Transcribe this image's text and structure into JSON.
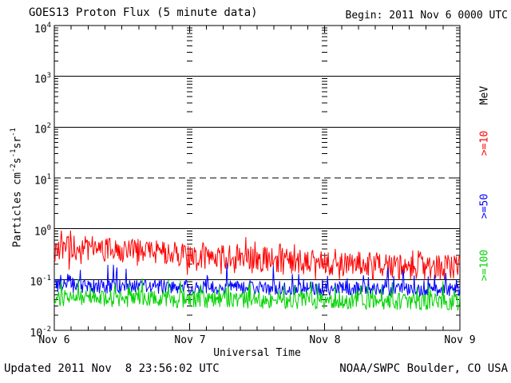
{
  "header": {
    "title": "GOES13 Proton Flux (5 minute data)",
    "begin": "Begin: 2011 Nov 6 0000 UTC"
  },
  "footer": {
    "updated": "Updated 2011 Nov  8 23:56:02 UTC",
    "source": "NOAA/SWPC Boulder, CO USA"
  },
  "axis": {
    "x_title": "Universal Time",
    "unit": "MeV",
    "y_title": {
      "p1": "Particles cm",
      "e1": "-2",
      "p2": "s",
      "e2": "-1",
      "p3": "sr",
      "e3": "-1"
    }
  },
  "colors": {
    "frame": "#000000",
    "series_ge10": "#ff0000",
    "series_ge50": "#0000ff",
    "series_ge100": "#00d300"
  },
  "chart_data": {
    "type": "line",
    "title": "GOES13 Proton Flux (5 minute data)",
    "xlabel": "Universal Time",
    "ylabel": "Particles cm-2 s-1 sr-1",
    "x_ticks": [
      "Nov 6",
      "Nov 7",
      "Nov 8",
      "Nov 9"
    ],
    "xlim_hours": [
      0,
      72
    ],
    "ylim_log": [
      -2,
      4
    ],
    "y_ticks": [
      {
        "base": "10",
        "exp": "4"
      },
      {
        "base": "10",
        "exp": "3"
      },
      {
        "base": "10",
        "exp": "2"
      },
      {
        "base": "10",
        "exp": "1"
      },
      {
        "base": "10",
        "exp": "0"
      },
      {
        "base": "10",
        "exp": "-1"
      },
      {
        "base": "10",
        "exp": "-2"
      }
    ],
    "hlines": [
      {
        "log": 3,
        "style": "solid"
      },
      {
        "log": 2,
        "style": "solid"
      },
      {
        "log": 1,
        "style": "dashed"
      },
      {
        "log": 0,
        "style": "solid"
      },
      {
        "log": -1,
        "style": "solid"
      }
    ],
    "day_gridline_hours": [
      24,
      48
    ],
    "minor_xtick_step_hours": 3,
    "major_xtick_hours": [
      0,
      24,
      48,
      72
    ],
    "series": [
      {
        "label": ">=10",
        "name": ">=10 MeV",
        "color": "#ff0000",
        "seed": 1106,
        "trend_hours": [
          0,
          6,
          12,
          18,
          24,
          30,
          36,
          42,
          48,
          54,
          60,
          66,
          72
        ],
        "trend_values": [
          0.44,
          0.42,
          0.38,
          0.35,
          0.3,
          0.27,
          0.25,
          0.23,
          0.21,
          0.2,
          0.19,
          0.18,
          0.17
        ],
        "noise_log": 0.25,
        "spike_prob": 0.1,
        "spike_log": 0.22,
        "spike_sign": "both",
        "clip_min": 0.1,
        "clip_max": 0.92,
        "step_hours": 0.125
      },
      {
        "label": ">=50",
        "name": ">=50 MeV",
        "color": "#0000ff",
        "seed": 5011,
        "trend_hours": [
          0,
          24,
          48,
          72
        ],
        "trend_values": [
          0.075,
          0.071,
          0.066,
          0.063
        ],
        "noise_log": 0.14,
        "spike_prob": 0.07,
        "spike_log": 0.38,
        "spike_sign": "up",
        "clip_min": 0.047,
        "clip_max": 0.3,
        "step_hours": 0.125
      },
      {
        "label": ">=100",
        "name": ">=100 MeV",
        "color": "#00d300",
        "seed": 10011,
        "trend_hours": [
          0,
          24,
          48,
          72
        ],
        "trend_values": [
          0.043,
          0.041,
          0.038,
          0.036
        ],
        "noise_log": 0.17,
        "spike_prob": 0.07,
        "spike_log": 0.35,
        "spike_sign": "up",
        "clip_min": 0.024,
        "clip_max": 0.16,
        "step_hours": 0.125
      }
    ]
  }
}
